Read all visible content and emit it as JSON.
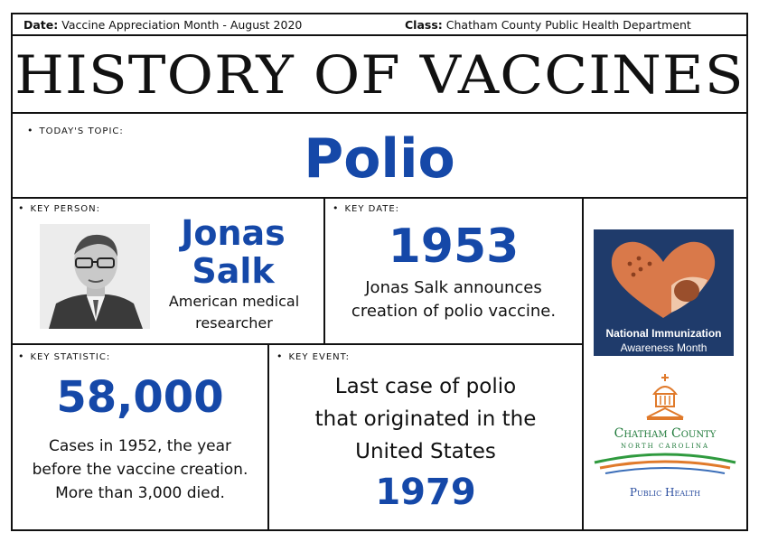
{
  "header": {
    "date_label": "Date:",
    "date_value": "Vaccine Appreciation Month - August 2020",
    "class_label": "Class:",
    "class_value": "Chatham County Public Health Department",
    "title": "HISTORY OF VACCINES"
  },
  "topic": {
    "label": "TODAY'S TOPIC:",
    "value": "Polio"
  },
  "key_person": {
    "label": "KEY PERSON:",
    "name_line1": "Jonas",
    "name_line2": "Salk",
    "description_line1": "American medical",
    "description_line2": "researcher"
  },
  "key_date": {
    "label": "KEY DATE:",
    "year": "1953",
    "description_line1": "Jonas Salk announces",
    "description_line2": "creation of polio vaccine."
  },
  "key_statistic": {
    "label": "KEY STATISTIC:",
    "value": "58,000",
    "description_line1": "Cases in 1952, the year",
    "description_line2": "before the vaccine creation.",
    "description_line3": "More than 3,000 died."
  },
  "key_event": {
    "label": "KEY EVENT:",
    "text_line1": "Last case of polio",
    "text_line2": "that originated in the",
    "text_line3": "United States",
    "year": "1979"
  },
  "niam_logo": {
    "line1": "National Immunization",
    "line2": "Awareness Month",
    "background": "#1f3b6b",
    "heart": "#d9794a"
  },
  "chatham_logo": {
    "line1": "Chatham County",
    "line2": "North Carolina",
    "line3": "Public Health"
  },
  "colors": {
    "accent_blue": "#1548a8",
    "border": "#111111"
  }
}
